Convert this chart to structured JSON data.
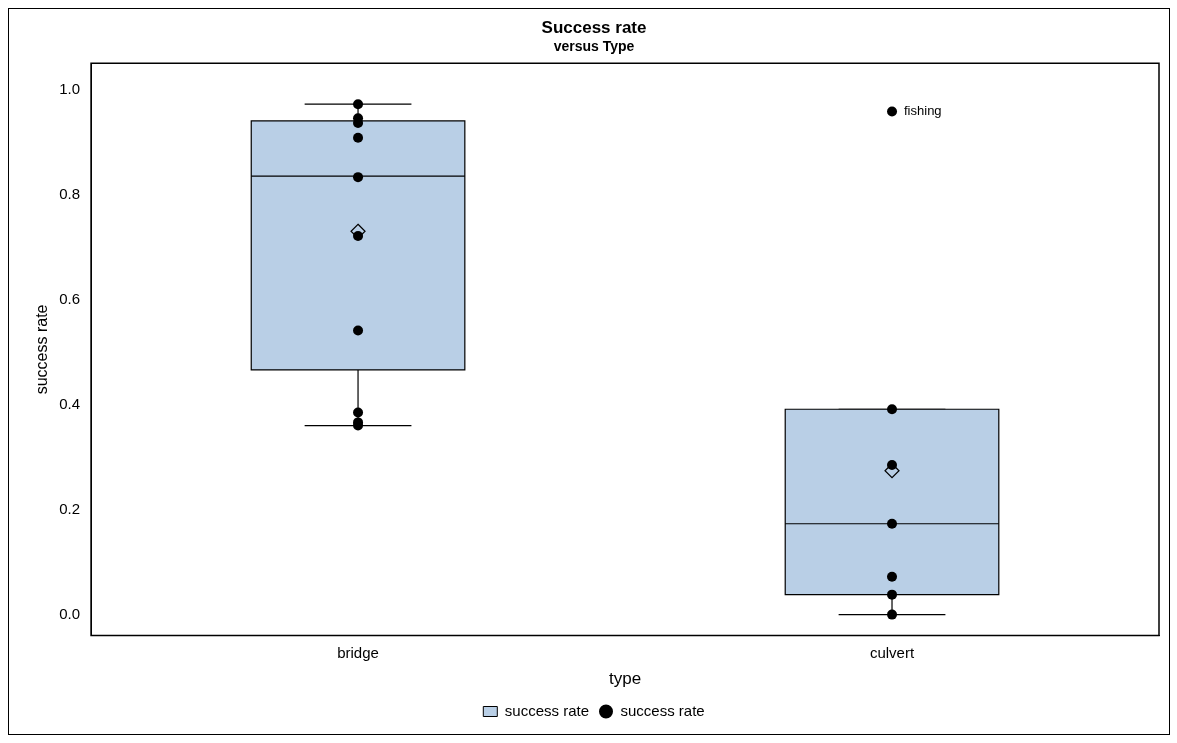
{
  "chart_data": {
    "type": "box",
    "title": "Success rate",
    "subtitle": "versus Type",
    "xlabel": "type",
    "ylabel": "success rate",
    "categories": [
      "bridge",
      "culvert"
    ],
    "ylim": [
      -0.04,
      1.05
    ],
    "yticks": [
      {
        "value": 0,
        "label": "0.0"
      },
      {
        "value": 0.2,
        "label": "0.2"
      },
      {
        "value": 0.4,
        "label": "0.4"
      },
      {
        "value": 0.6,
        "label": "0.6"
      },
      {
        "value": 0.8,
        "label": "0.8"
      },
      {
        "value": 1,
        "label": "1.0"
      }
    ],
    "legend": "bottom",
    "grid": false,
    "series": [
      {
        "name": "success rate",
        "color": "#b9cfe6",
        "boxes": [
          {
            "low": 0.36,
            "q1": 0.466,
            "median": 0.835,
            "q3": 0.94,
            "high": 0.972,
            "mean": 0.73
          },
          {
            "low": 0,
            "q1": 0.038,
            "median": 0.173,
            "q3": 0.391,
            "high": 0.391,
            "mean": 0.274
          }
        ]
      },
      {
        "type": "scatter",
        "name": "success rate",
        "color": "#000000",
        "marker": "circle",
        "x": [
          "bridge",
          "bridge",
          "bridge",
          "bridge",
          "bridge",
          "bridge",
          "bridge",
          "bridge",
          "bridge",
          "bridge",
          "culvert",
          "culvert",
          "culvert",
          "culvert",
          "culvert",
          "culvert",
          "culvert"
        ],
        "values": [
          0.972,
          0.945,
          0.936,
          0.908,
          0.833,
          0.721,
          0.541,
          0.385,
          0.366,
          0.36,
          0.958,
          0.391,
          0.285,
          0.173,
          0.072,
          0.038,
          0
        ]
      }
    ],
    "annotations": [
      {
        "text": "fishing",
        "x": "culvert",
        "y": 0.958
      }
    ]
  }
}
